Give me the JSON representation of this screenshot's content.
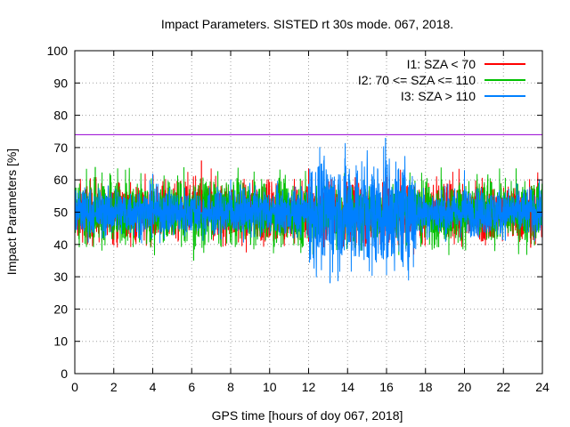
{
  "chart_data": {
    "type": "line",
    "title": "Impact Parameters. SISTED rt 30s mode. 067, 2018.",
    "xlabel": "GPS time [hours of doy 067, 2018]",
    "ylabel": "Impact Parameters [%]",
    "xlim": [
      0,
      24
    ],
    "ylim": [
      0,
      100
    ],
    "x_ticks": [
      0,
      2,
      4,
      6,
      8,
      10,
      12,
      14,
      16,
      18,
      20,
      22,
      24
    ],
    "y_ticks": [
      0,
      10,
      20,
      30,
      40,
      50,
      60,
      70,
      80,
      90,
      100
    ],
    "grid": true,
    "legend_position": "top-right",
    "threshold": {
      "value": 74,
      "color": "#9400d3"
    },
    "series": [
      {
        "name": "I1: SZA < 70",
        "color": "#ff0000",
        "hours": [
          5.8,
          6.2,
          6.6,
          7.0,
          7.6,
          8.0,
          8.4,
          8.8,
          9.6,
          10.4,
          12.0,
          14.0,
          16.0,
          17.4,
          18.4,
          19.4
        ],
        "mean": 50,
        "max": 66,
        "min": 39
      },
      {
        "name": "I2: 70 <= SZA <= 110",
        "color": "#00c000",
        "hours": [
          0.6,
          1.0,
          1.4,
          1.8,
          2.2,
          2.6,
          3.0,
          3.4,
          5.6,
          6.2,
          7.8,
          9.2,
          10.2,
          10.8,
          11.2,
          11.6,
          12.4,
          17.2,
          17.8,
          18.6,
          19.2,
          21.2,
          22.4,
          23.2,
          23.8
        ],
        "mean": 50,
        "max": 64,
        "min": 35
      },
      {
        "name": "I3: SZA > 110",
        "color": "#0080ff",
        "hours": [
          0,
          4,
          8,
          12,
          13,
          14,
          15,
          16,
          17,
          20,
          24
        ],
        "mean": 50,
        "max": 73,
        "min": 28
      }
    ]
  }
}
